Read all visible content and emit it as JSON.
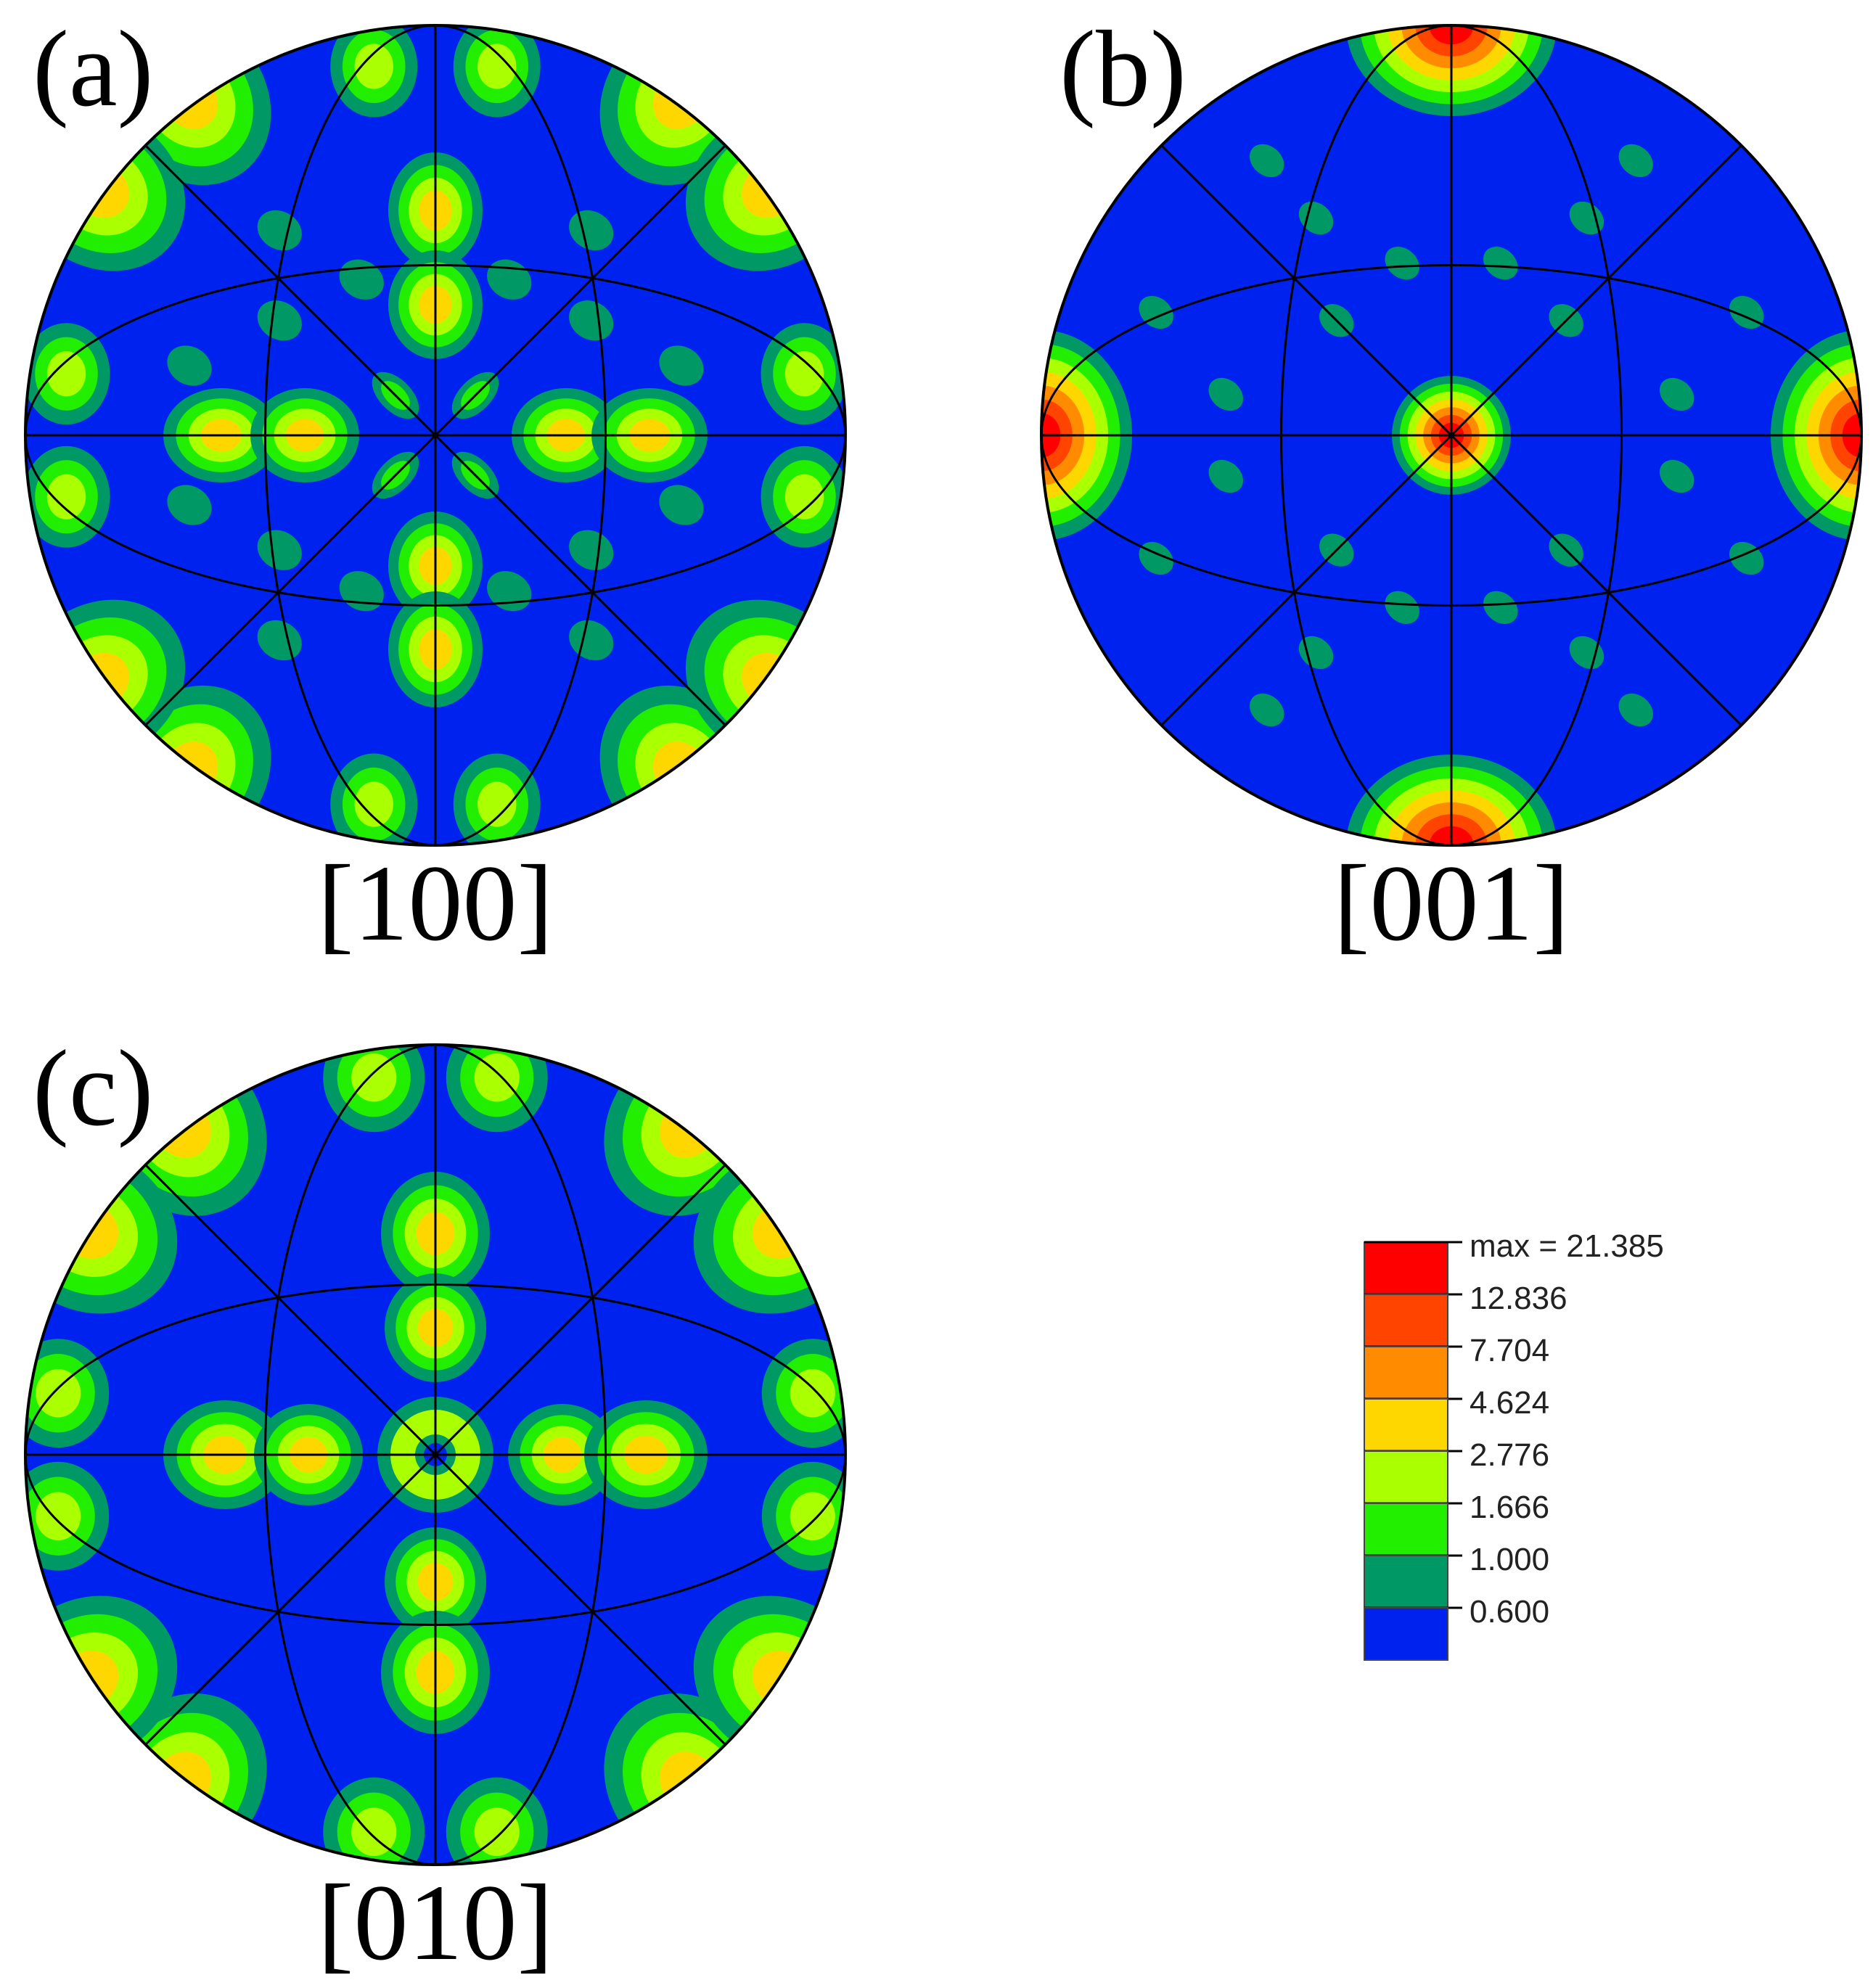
{
  "chart_data": [
    {
      "type": "heatmap",
      "subtype": "pole-figure",
      "panel_label": "(a)",
      "direction": "[100]",
      "scale_levels": [
        "0.600",
        "1.000",
        "1.666",
        "2.776",
        "4.624",
        "7.704",
        "12.836",
        "max = 21.385"
      ]
    },
    {
      "type": "heatmap",
      "subtype": "pole-figure",
      "panel_label": "(b)",
      "direction": "[001]",
      "scale_levels": [
        "0.600",
        "1.000",
        "1.666",
        "2.776",
        "4.624",
        "7.704",
        "12.836",
        "max = 21.385"
      ]
    },
    {
      "type": "heatmap",
      "subtype": "pole-figure",
      "panel_label": "(c)",
      "direction": "[010]",
      "scale_levels": [
        "0.600",
        "1.000",
        "1.666",
        "2.776",
        "4.624",
        "7.704",
        "12.836",
        "max = 21.385"
      ]
    }
  ],
  "legend": {
    "max_label": "max = 21.385",
    "levels": [
      "12.836",
      "7.704",
      "4.624",
      "2.776",
      "1.666",
      "1.000",
      "0.600"
    ],
    "colors": [
      "#ff0000",
      "#ff4400",
      "#ff8c00",
      "#ffd700",
      "#aaff00",
      "#22ee00",
      "#009966",
      "#0022ee"
    ]
  }
}
